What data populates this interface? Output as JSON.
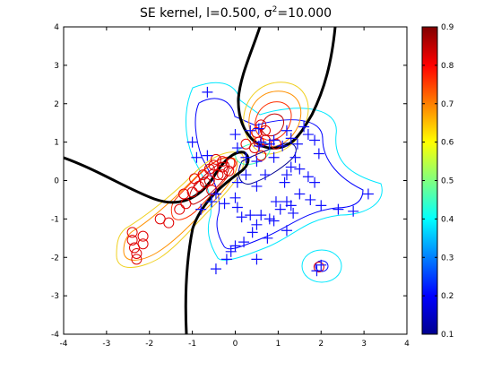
{
  "chart_data": {
    "type": "scatter",
    "title_prefix": "SE kernel, l=0.500, ",
    "title_sigma": "σ",
    "title_exp": "2",
    "title_suffix": "=10.000",
    "xlabel": "",
    "ylabel": "",
    "xlim": [
      -4,
      4
    ],
    "ylim": [
      -4,
      4
    ],
    "xticks": [
      "-4",
      "-3",
      "-2",
      "-1",
      "0",
      "1",
      "2",
      "3",
      "4"
    ],
    "yticks": [
      "-4",
      "-3",
      "-2",
      "-1",
      "0",
      "1",
      "2",
      "3",
      "4"
    ],
    "colorbar": {
      "range": [
        0.1,
        0.9
      ],
      "ticks": [
        "0.1",
        "0.2",
        "0.3",
        "0.4",
        "0.5",
        "0.6",
        "0.7",
        "0.8",
        "0.9"
      ],
      "colormap": "jet"
    },
    "series": [
      {
        "marker": "circle",
        "color": "#e00000",
        "points": [
          [
            -2.4,
            -1.35
          ],
          [
            -2.4,
            -1.55
          ],
          [
            -2.35,
            -1.75
          ],
          [
            -2.3,
            -1.9
          ],
          [
            -2.3,
            -2.05
          ],
          [
            -2.15,
            -1.45
          ],
          [
            -2.15,
            -1.65
          ],
          [
            -1.75,
            -1.0
          ],
          [
            -1.55,
            -1.1
          ],
          [
            -1.3,
            -0.75
          ],
          [
            -1.15,
            -0.6
          ],
          [
            -1.2,
            -0.35
          ],
          [
            -1.0,
            -0.3
          ],
          [
            -0.85,
            -0.15
          ],
          [
            -0.7,
            -0.05
          ],
          [
            -0.75,
            0.15
          ],
          [
            -0.95,
            0.05
          ],
          [
            -0.6,
            0.3
          ],
          [
            -0.5,
            0.4
          ],
          [
            -0.45,
            0.55
          ],
          [
            -0.3,
            0.5
          ],
          [
            -0.3,
            0.35
          ],
          [
            -0.1,
            0.45
          ],
          [
            -0.55,
            -0.25
          ],
          [
            -0.15,
            0.25
          ],
          [
            -0.4,
            0.15
          ],
          [
            -0.6,
            0.0
          ],
          [
            -0.3,
            0.15
          ],
          [
            0.25,
            0.95
          ],
          [
            0.55,
            1.0
          ],
          [
            0.5,
            1.25
          ],
          [
            0.45,
            0.85
          ],
          [
            0.6,
            1.45
          ],
          [
            0.7,
            1.3
          ],
          [
            0.7,
            1.05
          ],
          [
            0.95,
            0.95
          ],
          [
            0.6,
            0.65
          ],
          [
            1.95,
            -2.25
          ]
        ]
      },
      {
        "marker": "plus",
        "color": "#1010ff",
        "points": [
          [
            -0.65,
            2.3
          ],
          [
            -1.0,
            1.0
          ],
          [
            -0.65,
            0.65
          ],
          [
            -0.9,
            0.6
          ],
          [
            0.05,
            0.85
          ],
          [
            0.0,
            1.2
          ],
          [
            0.35,
            1.3
          ],
          [
            0.55,
            1.35
          ],
          [
            0.6,
            1.0
          ],
          [
            0.8,
            0.95
          ],
          [
            0.9,
            1.05
          ],
          [
            1.1,
            0.9
          ],
          [
            1.2,
            1.3
          ],
          [
            1.3,
            1.1
          ],
          [
            1.45,
            0.95
          ],
          [
            1.6,
            1.4
          ],
          [
            1.7,
            1.2
          ],
          [
            1.85,
            1.05
          ],
          [
            1.95,
            0.7
          ],
          [
            1.4,
            0.6
          ],
          [
            1.3,
            0.35
          ],
          [
            1.2,
            0.15
          ],
          [
            1.5,
            0.3
          ],
          [
            1.7,
            0.1
          ],
          [
            1.85,
            -0.05
          ],
          [
            1.5,
            -0.35
          ],
          [
            1.75,
            -0.5
          ],
          [
            2.0,
            -0.65
          ],
          [
            2.4,
            -0.75
          ],
          [
            2.75,
            -0.8
          ],
          [
            3.1,
            -0.35
          ],
          [
            1.35,
            -0.85
          ],
          [
            1.3,
            -0.65
          ],
          [
            1.2,
            -0.55
          ],
          [
            1.05,
            -0.75
          ],
          [
            0.95,
            -0.55
          ],
          [
            0.9,
            -1.05
          ],
          [
            0.8,
            -1.0
          ],
          [
            0.6,
            -0.9
          ],
          [
            0.5,
            -1.15
          ],
          [
            0.35,
            -0.9
          ],
          [
            0.15,
            -0.95
          ],
          [
            0.05,
            -0.7
          ],
          [
            0.0,
            -0.45
          ],
          [
            -0.25,
            -0.6
          ],
          [
            -0.55,
            -0.55
          ],
          [
            -0.8,
            -0.75
          ],
          [
            -0.45,
            -0.35
          ],
          [
            0.05,
            -0.05
          ],
          [
            0.25,
            0.15
          ],
          [
            0.5,
            -0.15
          ],
          [
            0.7,
            0.15
          ],
          [
            0.5,
            0.5
          ],
          [
            0.9,
            0.6
          ],
          [
            1.15,
            -0.05
          ],
          [
            0.4,
            -1.35
          ],
          [
            0.2,
            -1.6
          ],
          [
            0.0,
            -1.7
          ],
          [
            -0.1,
            -1.85
          ],
          [
            -0.2,
            -2.05
          ],
          [
            -0.45,
            -2.3
          ],
          [
            0.5,
            -2.05
          ],
          [
            0.75,
            -1.5
          ],
          [
            1.2,
            -1.3
          ],
          [
            2.0,
            -2.2
          ],
          [
            1.9,
            -2.35
          ],
          [
            0.55,
            0.9
          ],
          [
            0.25,
            0.6
          ]
        ]
      }
    ]
  }
}
